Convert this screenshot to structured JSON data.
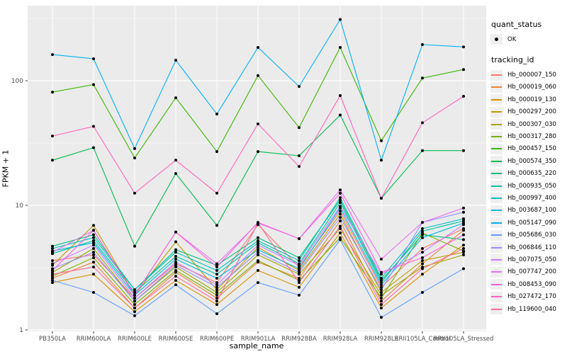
{
  "figure_type": "ggplot-line-chart",
  "colors": {
    "panel_background": "#EBEBEB",
    "grid": "#FFFFFF",
    "tick_label": "#4D4D4D",
    "tick_mark": "#333333",
    "point": "#000000",
    "legend_key_background": "#EFEFEF"
  },
  "y_axis": {
    "title": "FPKM + 1",
    "tick_labels": [
      "1",
      "10",
      "100"
    ]
  },
  "x_axis": {
    "title": "sample_name"
  },
  "legend": {
    "quant_status_title": "quant_status",
    "quant_status_items": [
      {
        "label": "OK",
        "marker": "black-point-icon"
      }
    ],
    "tracking_title": "tracking_id"
  },
  "chart_data": {
    "type": "line",
    "title": "",
    "xlabel": "sample_name",
    "ylabel": "FPKM + 1",
    "yscale": "log10",
    "ylim": [
      0.97,
      400
    ],
    "y_major_ticks": [
      1,
      10,
      100
    ],
    "y_minor_ticks": [
      3.162,
      31.62,
      316.2
    ],
    "grid": true,
    "legend_position": "right",
    "points": "black dot at every vertex (quant_status = OK)",
    "x": [
      "PB350LA",
      "RRIM600LA",
      "RRIM600LE",
      "RRIM600SE",
      "RRIM600PE",
      "RRIM901LA",
      "RRIM928BA",
      "RRIM928LA",
      "RRIM928LE",
      "RRII105LA_Control",
      "RRII105LA_Stressed"
    ],
    "series": [
      {
        "name": "Hb_000007_150",
        "color": "#F8766D",
        "values": [
          3.6,
          4.0,
          1.8,
          3.4,
          2.4,
          7.0,
          3.2,
          9.0,
          2.2,
          4.5,
          6.5
        ]
      },
      {
        "name": "Hb_000019_060",
        "color": "#EA8331",
        "values": [
          2.6,
          3.5,
          1.5,
          2.9,
          1.8,
          3.5,
          2.6,
          7.5,
          1.7,
          3.4,
          6.3
        ]
      },
      {
        "name": "Hb_000019_130",
        "color": "#D89000",
        "values": [
          2.4,
          2.8,
          1.4,
          2.5,
          1.6,
          3.0,
          2.2,
          6.0,
          1.5,
          2.8,
          4.8
        ]
      },
      {
        "name": "Hb_000297_200",
        "color": "#C09B00",
        "values": [
          3.3,
          6.9,
          1.9,
          5.1,
          2.1,
          4.6,
          3.0,
          8.5,
          2.0,
          3.6,
          4.2
        ]
      },
      {
        "name": "Hb_000307_030",
        "color": "#A3A500",
        "values": [
          2.9,
          4.5,
          1.7,
          3.2,
          2.0,
          4.0,
          2.8,
          6.5,
          1.9,
          3.2,
          4.0
        ]
      },
      {
        "name": "Hb_000317_280",
        "color": "#7CAE00",
        "values": [
          2.7,
          3.8,
          1.6,
          3.0,
          1.9,
          3.6,
          2.5,
          5.5,
          1.8,
          6.0,
          4.3
        ]
      },
      {
        "name": "Hb_000457_150",
        "color": "#39B600",
        "values": [
          81,
          93,
          24,
          73,
          27,
          110,
          42,
          185,
          33,
          105,
          123
        ]
      },
      {
        "name": "Hb_000574_350",
        "color": "#00BB4E",
        "values": [
          23,
          29,
          4.7,
          18,
          6.9,
          27,
          25,
          53,
          11.4,
          27.5,
          27.5
        ]
      },
      {
        "name": "Hb_000635_220",
        "color": "#00BF7D",
        "values": [
          4.7,
          5.8,
          2.1,
          4.4,
          3.3,
          5.5,
          3.8,
          11.0,
          2.5,
          5.8,
          5.3
        ]
      },
      {
        "name": "Hb_000935_050",
        "color": "#00C1A3",
        "values": [
          4.1,
          5.2,
          2.0,
          3.9,
          2.8,
          5.0,
          3.4,
          10.5,
          2.4,
          6.2,
          7.5
        ]
      },
      {
        "name": "Hb_000997_400",
        "color": "#00BFC4",
        "values": [
          4.5,
          5.5,
          2.1,
          4.2,
          3.0,
          5.2,
          3.6,
          11.5,
          2.6,
          6.5,
          7.8
        ]
      },
      {
        "name": "Hb_003687_100",
        "color": "#00BAE0",
        "values": [
          4.3,
          5.0,
          1.9,
          3.7,
          2.6,
          4.4,
          3.1,
          9.5,
          2.3,
          5.5,
          7.2
        ]
      },
      {
        "name": "Hb_005147_090",
        "color": "#00B0F6",
        "values": [
          162,
          150,
          28.5,
          146,
          54,
          185,
          90,
          310,
          23,
          195,
          187
        ]
      },
      {
        "name": "Hb_005686_030",
        "color": "#619CFF",
        "values": [
          2.5,
          2.0,
          1.3,
          2.3,
          1.35,
          2.4,
          1.9,
          5.3,
          1.26,
          2.0,
          3.1
        ]
      },
      {
        "name": "Hb_006846_110",
        "color": "#9590FF",
        "values": [
          3.1,
          4.2,
          1.7,
          3.3,
          2.2,
          4.2,
          2.9,
          8.0,
          2.1,
          7.3,
          8.8
        ]
      },
      {
        "name": "Hb_007075_050",
        "color": "#C77CFF",
        "values": [
          3.4,
          4.8,
          1.8,
          3.5,
          2.3,
          4.8,
          3.3,
          9.8,
          2.8,
          4.2,
          7.0
        ]
      },
      {
        "name": "Hb_007747_200",
        "color": "#E76BF3",
        "values": [
          4.2,
          6.3,
          1.9,
          6.1,
          3.4,
          7.2,
          5.4,
          13.3,
          3.7,
          7.3,
          9.5
        ]
      },
      {
        "name": "Hb_008453_090",
        "color": "#FA62DB",
        "values": [
          3.0,
          6.3,
          1.9,
          6.1,
          3.2,
          7.3,
          5.4,
          12.5,
          2.9,
          3.8,
          5.8
        ]
      },
      {
        "name": "Hb_027472_170",
        "color": "#FF62BC",
        "values": [
          36,
          43,
          12.5,
          23,
          12.5,
          45,
          20.5,
          76,
          11.4,
          46,
          75
        ]
      },
      {
        "name": "Hb_119600_040",
        "color": "#FF6A98",
        "values": [
          2.8,
          3.2,
          1.5,
          2.7,
          1.7,
          7.2,
          2.4,
          6.8,
          1.6,
          3.1,
          4.5
        ]
      }
    ]
  }
}
